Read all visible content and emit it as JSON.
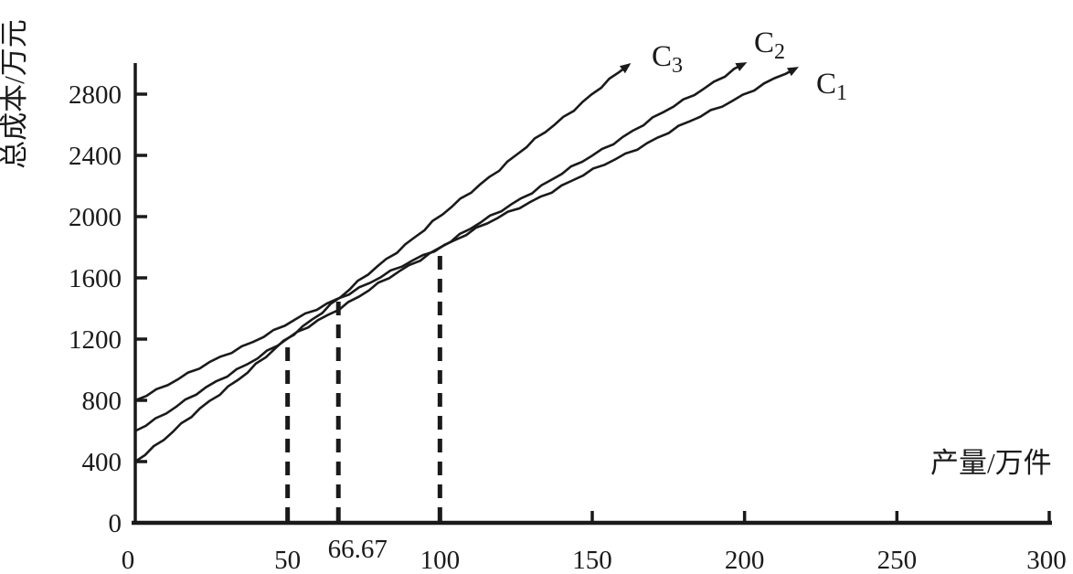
{
  "figure": {
    "background": "#ffffff",
    "line_color": "#1a1a1a",
    "y_axis_title": "总成本/万元",
    "x_axis_title": "产量/万件"
  },
  "chart_data": {
    "type": "line",
    "title": "",
    "xlabel": "产量/万件",
    "ylabel": "总成本/万元",
    "xlim": [
      0,
      300
    ],
    "ylim": [
      0,
      3000
    ],
    "grid": false,
    "legend_position": "inline-labels-at-line-ends",
    "x_tick_labels": [
      "0",
      "50",
      "66.67",
      "100",
      "150",
      "200",
      "250",
      "300"
    ],
    "y_tick_labels": [
      "0",
      "400",
      "800",
      "1200",
      "1600",
      "2000",
      "2400",
      "2800"
    ],
    "series": [
      {
        "name": "C1",
        "label": {
          "letter": "C",
          "subscript": "1"
        },
        "fixed_cost_intercept": 800,
        "slope_per_unit": 10,
        "points": [
          [
            0,
            800
          ],
          [
            217,
            2970
          ]
        ]
      },
      {
        "name": "C2",
        "label": {
          "letter": "C",
          "subscript": "2"
        },
        "fixed_cost_intercept": 600,
        "slope_per_unit": 12,
        "points": [
          [
            0,
            600
          ],
          [
            200,
            3000
          ]
        ]
      },
      {
        "name": "C3",
        "label": {
          "letter": "C",
          "subscript": "3"
        },
        "fixed_cost_intercept": 400,
        "slope_per_unit": 16,
        "points": [
          [
            0,
            400
          ],
          [
            162,
            2992
          ]
        ]
      }
    ],
    "breakeven_markers": [
      {
        "x_label": "50",
        "x": 50,
        "y": 1200,
        "style": "dashed-vertical"
      },
      {
        "x_label": "66.67",
        "x": 66.67,
        "y": 1466.7,
        "style": "dashed-vertical"
      },
      {
        "x_label": "100",
        "x": 100,
        "y": 1800,
        "style": "dashed-vertical"
      }
    ]
  }
}
